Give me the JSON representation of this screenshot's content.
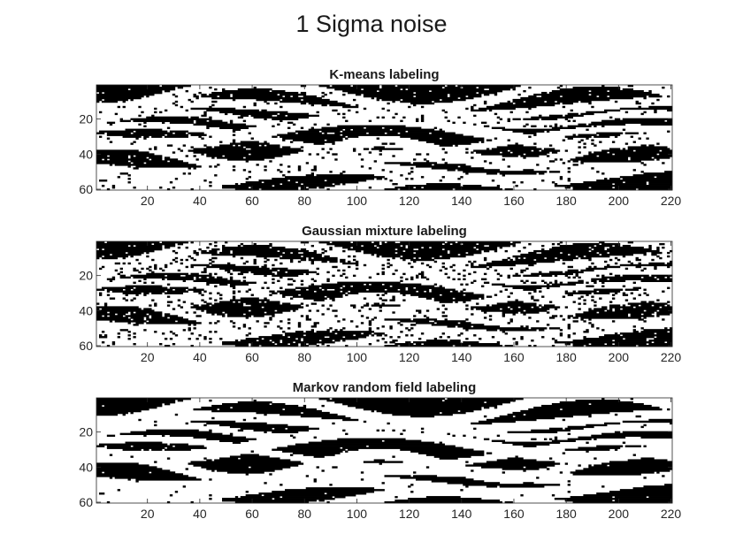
{
  "figure": {
    "title": "1 Sigma noise"
  },
  "chart_data": [
    {
      "type": "heatmap",
      "title": "K-means labeling",
      "xlabel": "",
      "ylabel": "",
      "xlim": [
        0.5,
        220.5
      ],
      "ylim": [
        0.5,
        60.5
      ],
      "y_direction": "reverse",
      "colormap": [
        "#000000",
        "#ffffff"
      ],
      "xticks": [
        20,
        40,
        60,
        80,
        100,
        120,
        140,
        160,
        180,
        200,
        220
      ],
      "yticks": [
        20,
        40,
        60
      ],
      "labels": [
        0,
        1
      ]
    },
    {
      "type": "heatmap",
      "title": "Gaussian mixture labeling",
      "xlabel": "",
      "ylabel": "",
      "xlim": [
        0.5,
        220.5
      ],
      "ylim": [
        0.5,
        60.5
      ],
      "y_direction": "reverse",
      "colormap": [
        "#000000",
        "#ffffff"
      ],
      "xticks": [
        20,
        40,
        60,
        80,
        100,
        120,
        140,
        160,
        180,
        200,
        220
      ],
      "yticks": [
        20,
        40,
        60
      ],
      "labels": [
        0,
        1
      ]
    },
    {
      "type": "heatmap",
      "title": "Markov random field labeling",
      "xlabel": "",
      "ylabel": "",
      "xlim": [
        0.5,
        220.5
      ],
      "ylim": [
        0.5,
        60.5
      ],
      "y_direction": "reverse",
      "colormap": [
        "#000000",
        "#ffffff"
      ],
      "xticks": [
        20,
        40,
        60,
        80,
        100,
        120,
        140,
        160,
        180,
        200,
        220
      ],
      "yticks": [
        20,
        40,
        60
      ],
      "labels": [
        0,
        1
      ]
    }
  ]
}
